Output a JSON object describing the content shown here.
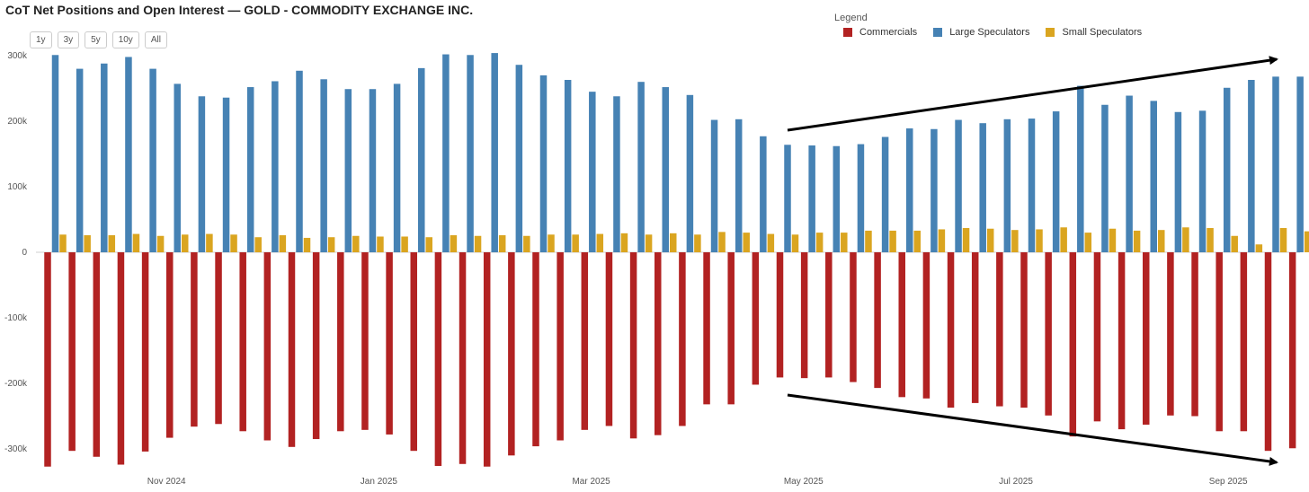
{
  "title": "CoT Net Positions and Open Interest — GOLD - COMMODITY EXCHANGE INC.",
  "range_buttons": [
    "1y",
    "3y",
    "5y",
    "10y",
    "All"
  ],
  "legend": {
    "title": "Legend",
    "items": [
      {
        "name": "Commercials",
        "color": "#b22222"
      },
      {
        "name": "Large Speculators",
        "color": "#4682b4"
      },
      {
        "name": "Small Speculators",
        "color": "#daa520"
      }
    ]
  },
  "chart_data": {
    "type": "bar",
    "title": "CoT Net Positions and Open Interest — GOLD - COMMODITY EXCHANGE INC.",
    "xlabel": "",
    "ylabel": "",
    "ylim": [
      -330000,
      320000
    ],
    "yticks": [
      {
        "value": 300000,
        "label": "300k"
      },
      {
        "value": 200000,
        "label": "200k"
      },
      {
        "value": 100000,
        "label": "100k"
      },
      {
        "value": 0,
        "label": "0"
      },
      {
        "value": -100000,
        "label": "-100k"
      },
      {
        "value": -200000,
        "label": "-200k"
      },
      {
        "value": -300000,
        "label": "-300k"
      }
    ],
    "xticks": [
      {
        "index": 4.5,
        "label": "Nov 2024"
      },
      {
        "index": 13.2,
        "label": "Jan 2025"
      },
      {
        "index": 21.9,
        "label": "Mar 2025"
      },
      {
        "index": 30.6,
        "label": "May 2025"
      },
      {
        "index": 39.3,
        "label": "Jul 2025"
      },
      {
        "index": 48.0,
        "label": "Sep 2025"
      }
    ],
    "series": [
      {
        "name": "Commercials",
        "color": "#b22222",
        "values": [
          -327000,
          -303000,
          -312000,
          -324000,
          -304000,
          -283000,
          -266000,
          -262000,
          -273000,
          -287000,
          -297000,
          -285000,
          -273000,
          -271000,
          -278000,
          -303000,
          -326000,
          -323000,
          -327000,
          -310000,
          -296000,
          -287000,
          -271000,
          -265000,
          -284000,
          -279000,
          -265000,
          -232000,
          -232000,
          -202000,
          -191000,
          -192000,
          -191000,
          -198000,
          -207000,
          -221000,
          -223000,
          -237000,
          -230000,
          -235000,
          -237000,
          -249000,
          -281000,
          -258000,
          -270000,
          -263000,
          -249000,
          -250000,
          -273000,
          -273000,
          -303000,
          -299000
        ]
      },
      {
        "name": "Large Speculators",
        "color": "#4682b4",
        "values": [
          301000,
          280000,
          288000,
          298000,
          280000,
          257000,
          238000,
          236000,
          252000,
          261000,
          277000,
          264000,
          249000,
          249000,
          257000,
          281000,
          302000,
          301000,
          304000,
          286000,
          270000,
          263000,
          245000,
          238000,
          260000,
          252000,
          240000,
          202000,
          203000,
          177000,
          164000,
          163000,
          162000,
          165000,
          176000,
          189000,
          188000,
          202000,
          197000,
          203000,
          204000,
          215000,
          254000,
          225000,
          239000,
          231000,
          214000,
          216000,
          251000,
          263000,
          268000,
          268000
        ]
      },
      {
        "name": "Small Speculators",
        "color": "#daa520",
        "values": [
          27000,
          26000,
          26000,
          28000,
          25000,
          27000,
          28000,
          27000,
          23000,
          26000,
          22000,
          23000,
          25000,
          24000,
          24000,
          23000,
          26000,
          25000,
          26000,
          25000,
          27000,
          27000,
          28000,
          29000,
          27000,
          29000,
          27000,
          31000,
          30000,
          28000,
          27000,
          30000,
          30000,
          33000,
          33000,
          33000,
          35000,
          37000,
          36000,
          34000,
          35000,
          38000,
          30000,
          36000,
          33000,
          34000,
          38000,
          37000,
          25000,
          12000,
          37000,
          32000
        ]
      }
    ],
    "annotations": [
      {
        "type": "arrow",
        "label": "",
        "direction": "up-right"
      },
      {
        "type": "arrow",
        "label": "",
        "direction": "down-right"
      }
    ]
  }
}
